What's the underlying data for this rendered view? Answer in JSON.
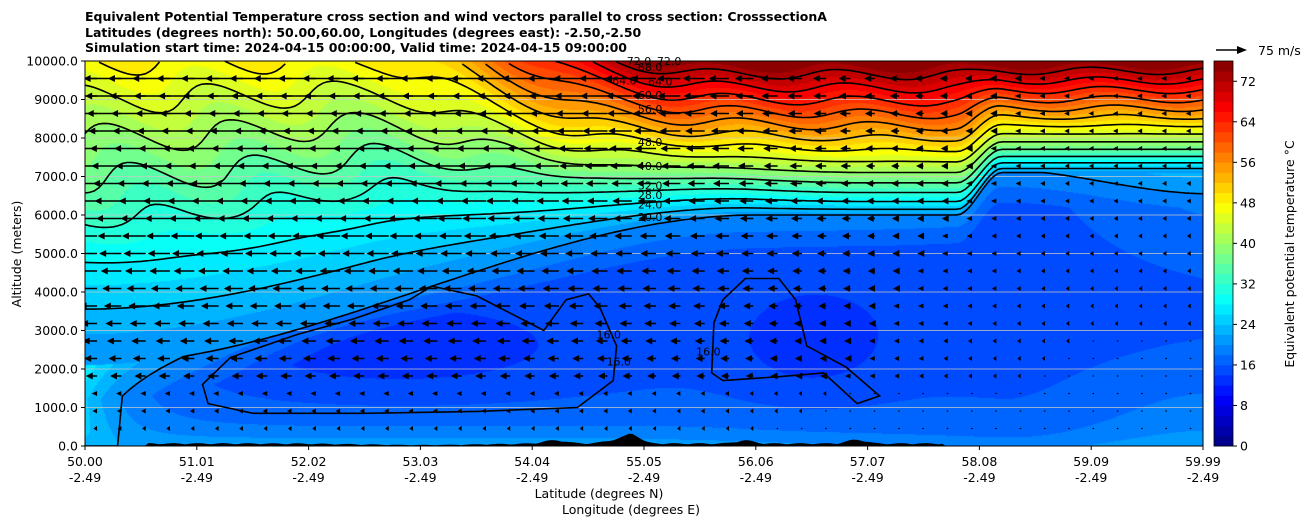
{
  "chart_data": {
    "type": "heatmap",
    "title_lines": [
      "Equivalent Potential Temperature cross section and wind vectors parallel to cross section: CrosssectionA",
      "Latitudes (degrees north): 50.00,60.00, Longitudes (degrees east): -2.50,-2.50",
      "Simulation start time: 2024-04-15 00:00:00, Valid time: 2024-04-15 09:00:00"
    ],
    "ylabel": "Altitude (meters)",
    "xlabel_lines": [
      "Latitude (degrees N)",
      "Longitude (degrees E)"
    ],
    "ylim": [
      0,
      10000
    ],
    "xlim": [
      50.0,
      59.99
    ],
    "y_ticks": [
      "0.0",
      "1000.0",
      "2000.0",
      "3000.0",
      "4000.0",
      "5000.0",
      "6000.0",
      "7000.0",
      "8000.0",
      "9000.0",
      "10000.0"
    ],
    "x_ticks": [
      {
        "lat": "50.00",
        "lon": "-2.49"
      },
      {
        "lat": "51.01",
        "lon": "-2.49"
      },
      {
        "lat": "52.02",
        "lon": "-2.49"
      },
      {
        "lat": "53.03",
        "lon": "-2.49"
      },
      {
        "lat": "54.04",
        "lon": "-2.49"
      },
      {
        "lat": "55.05",
        "lon": "-2.49"
      },
      {
        "lat": "56.06",
        "lon": "-2.49"
      },
      {
        "lat": "57.07",
        "lon": "-2.49"
      },
      {
        "lat": "58.08",
        "lon": "-2.49"
      },
      {
        "lat": "59.09",
        "lon": "-2.49"
      },
      {
        "lat": "59.99",
        "lon": "-2.49"
      }
    ],
    "colorbar": {
      "label": "Equivalent potential temperature $^\\circ$C",
      "label_text": "Equivalent potential temperature °C",
      "range": [
        0,
        76
      ],
      "ticks": [
        "0",
        "8",
        "16",
        "24",
        "32",
        "40",
        "48",
        "56",
        "64",
        "72"
      ],
      "colormap": "jet"
    },
    "quiver_key": {
      "label": "75 m/s",
      "value": 75
    },
    "contour_labels": [
      {
        "text": "16.0",
        "lat": 54.68,
        "alt": 2900
      },
      {
        "text": "16.0",
        "lat": 54.77,
        "alt": 2200
      },
      {
        "text": "16.0",
        "lat": 55.57,
        "alt": 2450
      },
      {
        "text": "20.0",
        "lat": 55.05,
        "alt": 5950
      },
      {
        "text": "24.0",
        "lat": 55.05,
        "alt": 6270
      },
      {
        "text": "28.0",
        "lat": 55.05,
        "alt": 6520
      },
      {
        "text": "32.0",
        "lat": 55.05,
        "alt": 6770
      },
      {
        "text": "40.0",
        "lat": 55.05,
        "alt": 7270
      },
      {
        "text": "48.0",
        "lat": 55.05,
        "alt": 7900
      },
      {
        "text": "56.0",
        "lat": 55.05,
        "alt": 8750
      },
      {
        "text": "60.0",
        "lat": 55.05,
        "alt": 9120
      },
      {
        "text": "64.0",
        "lat": 54.82,
        "alt": 9500
      },
      {
        "text": "64.0",
        "lat": 55.14,
        "alt": 9470
      },
      {
        "text": "68.0",
        "lat": 55.05,
        "alt": 9850
      },
      {
        "text": "72.0",
        "lat": 55.22,
        "alt": 10000
      },
      {
        "text": "72.0",
        "lat": 54.95,
        "alt": 10000
      }
    ],
    "theta_e_levels": {
      "boundary_layer_core": 16,
      "mid_troposphere": 24,
      "upper_left_max": 48,
      "upper_right_max": 76
    },
    "wind": {
      "note": "Wind vectors parallel to cross section; strongest toward negative x aloft in the southern half",
      "max_speed_ms": 30
    }
  }
}
